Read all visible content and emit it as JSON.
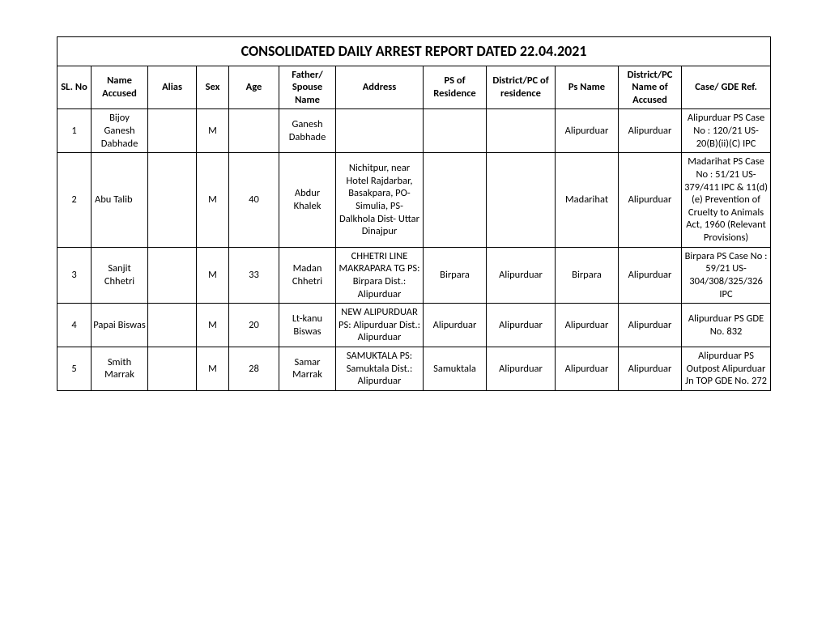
{
  "title": "CONSOLIDATED DAILY ARREST REPORT DATED 22.04.2021",
  "columns": [
    "SL. No",
    "Name Accused",
    "Alias",
    "Sex",
    "Age",
    "Father/ Spouse Name",
    "Address",
    "PS of Residence",
    "District/PC of residence",
    "Ps Name",
    "District/PC Name of Accused",
    "Case/ GDE Ref."
  ],
  "rows": [
    {
      "sl": "1",
      "name": "Bijoy Ganesh Dabhade",
      "alias": "",
      "sex": "M",
      "age": "",
      "father": "Ganesh Dabhade",
      "address": "",
      "ps_res": "",
      "dist_res": "",
      "ps_name": "Alipurduar",
      "dist_acc": "Alipurduar",
      "case": "Alipurduar PS Case No : 120/21 US-20(B)(ii)(C) IPC"
    },
    {
      "sl": "2",
      "name": "Abu  Talib",
      "alias": "",
      "sex": "M",
      "age": "40",
      "father": "Abdur Khalek",
      "address": "Nichitpur, near Hotel Rajdarbar, Basakpara, PO- Simulia, PS- Dalkhola Dist- Uttar Dinajpur",
      "ps_res": "",
      "dist_res": "",
      "ps_name": "Madarihat",
      "dist_acc": "Alipurduar",
      "case": "Madarihat PS Case No : 51/21 US-379/411 IPC & 11(d)(e) Prevention of Cruelty to Animals Act, 1960 (Relevant Provisions)"
    },
    {
      "sl": "3",
      "name": "Sanjit Chhetri",
      "alias": "",
      "sex": "M",
      "age": "33",
      "father": "Madan Chhetri",
      "address": "CHHETRI LINE MAKRAPARA TG PS: Birpara Dist.: Alipurduar",
      "ps_res": "Birpara",
      "dist_res": "Alipurduar",
      "ps_name": "Birpara",
      "dist_acc": "Alipurduar",
      "case": "Birpara PS Case No : 59/21 US-304/308/325/326 IPC"
    },
    {
      "sl": "4",
      "name": "Papai Biswas",
      "alias": "",
      "sex": "M",
      "age": "20",
      "father": "Lt-kanu Biswas",
      "address": "NEW ALIPURDUAR PS: Alipurduar Dist.: Alipurduar",
      "ps_res": "Alipurduar",
      "dist_res": "Alipurduar",
      "ps_name": "Alipurduar",
      "dist_acc": "Alipurduar",
      "case": "Alipurduar PS GDE No. 832"
    },
    {
      "sl": "5",
      "name": "Smith Marrak",
      "alias": "",
      "sex": "M",
      "age": "28",
      "father": "Samar Marrak",
      "address": "SAMUKTALA PS: Samuktala Dist.: Alipurduar",
      "ps_res": "Samuktala",
      "dist_res": "Alipurduar",
      "ps_name": "Alipurduar",
      "dist_acc": "Alipurduar",
      "case": "Alipurduar PS Outpost Alipurduar Jn TOP GDE No. 272"
    }
  ]
}
